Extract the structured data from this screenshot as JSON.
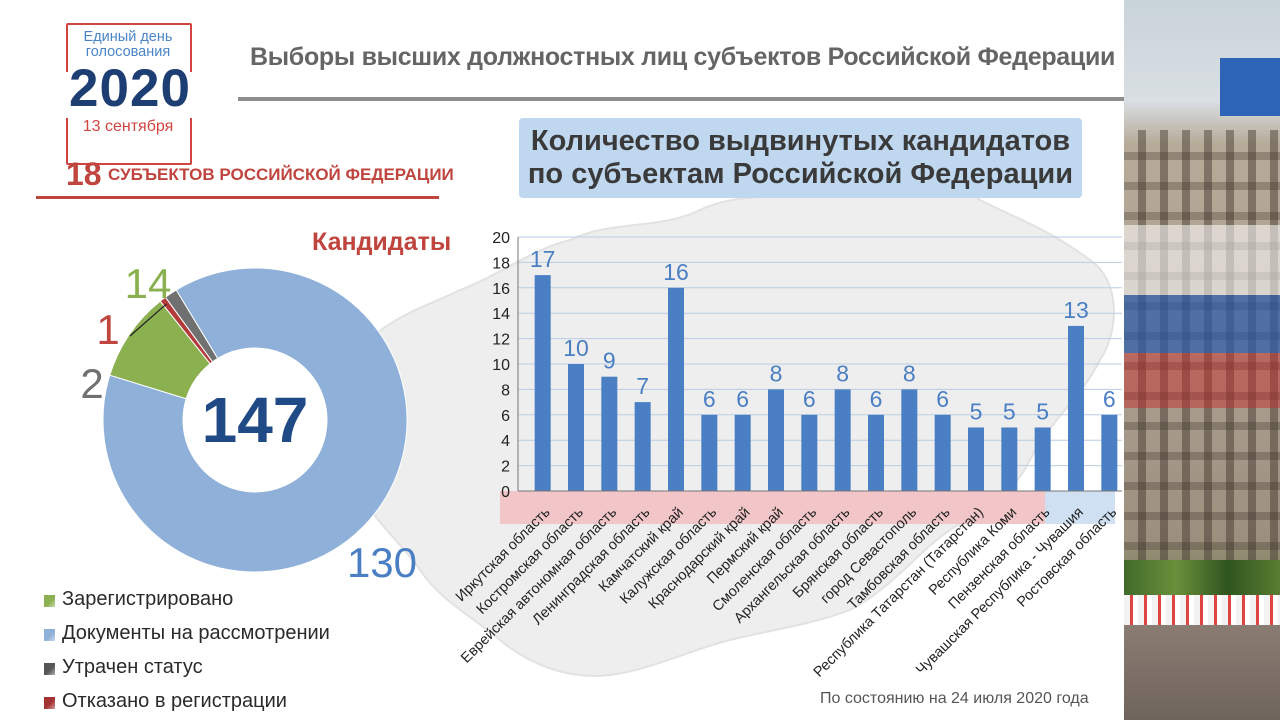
{
  "logo": {
    "line1": "Единый день",
    "line2": "голосования",
    "year": "2020",
    "date": "13 сентября"
  },
  "subjects": {
    "count": "18",
    "text": "СУБЪЕКТОВ РОССИЙСКОЙ ФЕДЕРАЦИИ"
  },
  "main_title": "Выборы высших должностных лиц субъектов Российской Федерации",
  "chart_title_line1": "Количество выдвинутых кандидатов",
  "chart_title_line2": "по субъектам Российской Федерации",
  "candidates_title": "Кандидаты",
  "footnote": "По состоянию на 24 июля 2020 года",
  "colors": {
    "registered": "#8bb04f",
    "review": "#8fb0d9",
    "lost": "#707070",
    "refused": "#b33a3a",
    "bar": "#4a7fc4",
    "label_blue": "#4a7fc4",
    "red": "#c0453f"
  },
  "chart_data": [
    {
      "type": "pie",
      "donut": true,
      "total": "147",
      "slices": [
        {
          "label": "Документы на рассмотрении",
          "value": 130,
          "color": "#8fb0d9"
        },
        {
          "label": "Зарегистрировано",
          "value": 14,
          "color": "#8bb04f"
        },
        {
          "label": "Отказано в регистрации",
          "value": 1,
          "color": "#b33a3a"
        },
        {
          "label": "Утрачен статус",
          "value": 2,
          "color": "#707070"
        }
      ],
      "legend": [
        {
          "label": "Зарегистрировано",
          "color": "#8bb04f"
        },
        {
          "label": "Документы на рассмотрении",
          "color": "#8fb0d9"
        },
        {
          "label": "Утрачен статус",
          "color": "#555555"
        },
        {
          "label": "Отказано в регистрации",
          "color": "#a33232"
        }
      ],
      "legend_position": "bottom-left"
    },
    {
      "type": "bar",
      "categories": [
        "Иркутская область",
        "Костромская область",
        "Еврейская автономная область",
        "Ленинградская область",
        "Камчатский край",
        "Калужская область",
        "Краснодарский край",
        "Пермский край",
        "Смоленская область",
        "Архангельская область",
        "Брянская область",
        "город Севастополь",
        "Тамбовская область",
        "Республика Татарстан (Татарстан)",
        "Республика Коми",
        "Пензенская область",
        "Чувашская Республика - Чувашия",
        "Ростовская область"
      ],
      "values": [
        17,
        10,
        9,
        7,
        16,
        6,
        6,
        8,
        6,
        8,
        6,
        8,
        6,
        5,
        5,
        5,
        13,
        6
      ],
      "ylim": [
        0,
        20
      ],
      "yticks": [
        0,
        2,
        4,
        6,
        8,
        10,
        12,
        14,
        16,
        18,
        20
      ],
      "grid": true,
      "legend": "none"
    }
  ]
}
